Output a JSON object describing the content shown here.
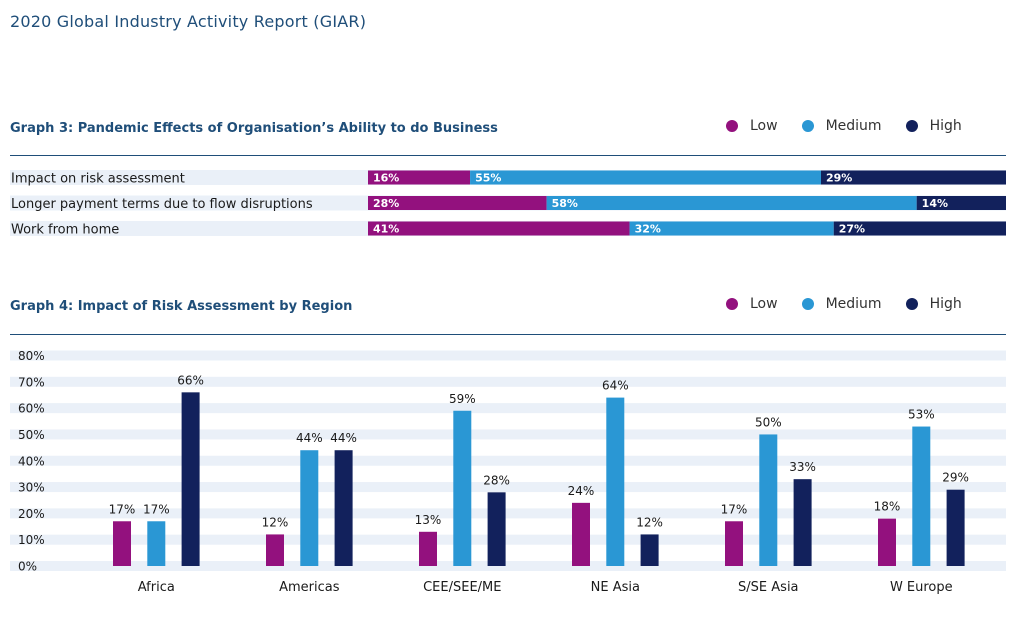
{
  "report_title": "2020 Global Industry Activity Report (GIAR)",
  "legend": {
    "low": "Low",
    "medium": "Medium",
    "high": "High"
  },
  "colors": {
    "low": "#93117e",
    "medium": "#2a97d4",
    "high": "#12215c",
    "band": "#eaf0f8",
    "title": "#1f4e79"
  },
  "chart_data": [
    {
      "type": "bar",
      "orientation": "horizontal-stacked",
      "title": "Graph 3: Pandemic Effects of Organisation’s Ability to do Business",
      "categories": [
        "Impact on risk assessment",
        "Longer payment terms due to flow disruptions",
        "Work from home"
      ],
      "series": [
        {
          "name": "Low",
          "values": [
            16,
            28,
            41
          ]
        },
        {
          "name": "Medium",
          "values": [
            55,
            58,
            32
          ]
        },
        {
          "name": "High",
          "values": [
            29,
            14,
            27
          ]
        }
      ],
      "unit": "%"
    },
    {
      "type": "bar",
      "orientation": "vertical-grouped",
      "title": "Graph 4: Impact of Risk Assessment by Region",
      "categories": [
        "Africa",
        "Americas",
        "CEE/SEE/ME",
        "NE Asia",
        "S/SE Asia",
        "W Europe"
      ],
      "series": [
        {
          "name": "Low",
          "values": [
            17,
            12,
            13,
            24,
            17,
            18
          ]
        },
        {
          "name": "Medium",
          "values": [
            17,
            44,
            59,
            64,
            50,
            53
          ]
        },
        {
          "name": "High",
          "values": [
            66,
            44,
            28,
            12,
            33,
            29
          ]
        }
      ],
      "ylim": [
        0,
        80
      ],
      "yticks": [
        "80%",
        "70%",
        "60%",
        "50%",
        "40%",
        "30%",
        "20%",
        "10%",
        "0%"
      ],
      "unit": "%"
    }
  ]
}
